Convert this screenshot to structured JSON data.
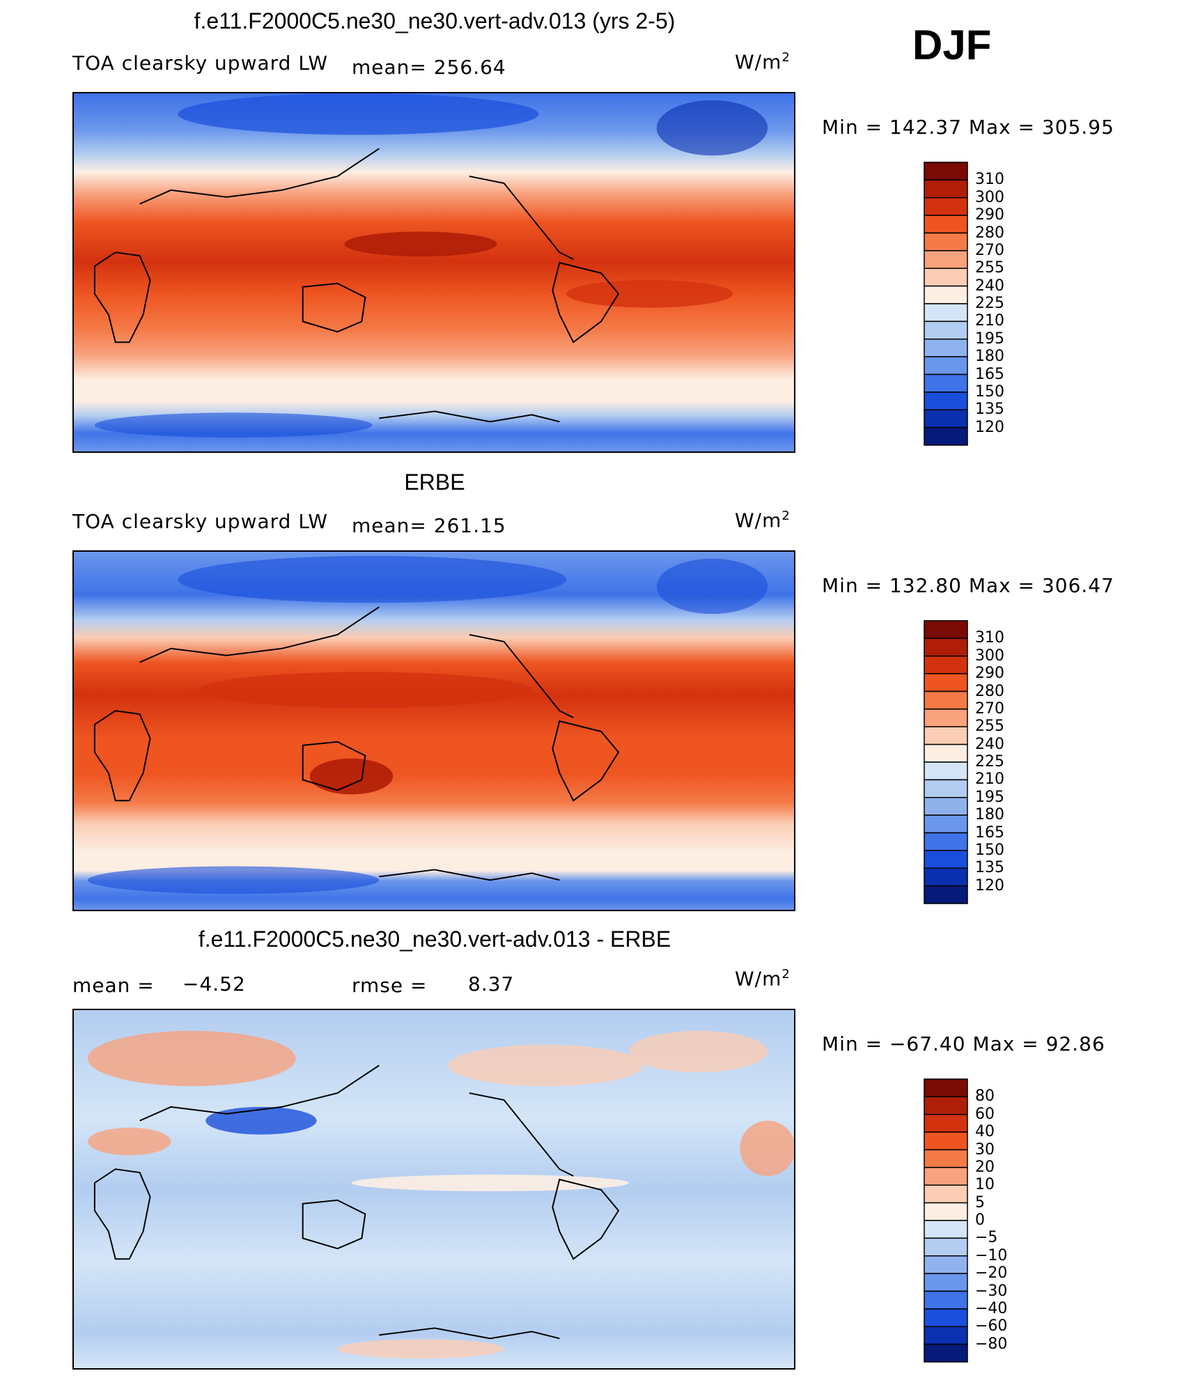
{
  "season": "DJF",
  "units_base": "W/m",
  "units_exp": "2",
  "panels": [
    {
      "title": "f.e11.F2000C5.ne30_ne30.vert-adv.013 (yrs 2-5)",
      "left_label": "TOA clearsky upward LW",
      "stat": "mean=  256.64",
      "minmax": "Min  =  142.37  Max  =  305.95",
      "colorbar_levels": [
        "310",
        "300",
        "290",
        "280",
        "270",
        "255",
        "240",
        "225",
        "210",
        "195",
        "180",
        "165",
        "150",
        "135",
        "120"
      ],
      "colorbar_colors": [
        "#7a0a05",
        "#b01e08",
        "#d3320f",
        "#ee5521",
        "#f47a47",
        "#f8a27e",
        "#fbcdb5",
        "#fdeee3",
        "#d4e5f7",
        "#b3cdf0",
        "#90b2ec",
        "#6a96ec",
        "#3f73e8",
        "#1a4fdb",
        "#0b30b0",
        "#061a7a"
      ]
    },
    {
      "title": "ERBE",
      "left_label": "TOA clearsky upward LW",
      "stat": "mean=  261.15",
      "minmax": "Min  =  132.80  Max  =  306.47",
      "colorbar_levels": [
        "310",
        "300",
        "290",
        "280",
        "270",
        "255",
        "240",
        "225",
        "210",
        "195",
        "180",
        "165",
        "150",
        "135",
        "120"
      ],
      "colorbar_colors": [
        "#7a0a05",
        "#b01e08",
        "#d3320f",
        "#ee5521",
        "#f47a47",
        "#f8a27e",
        "#fbcdb5",
        "#fdeee3",
        "#d4e5f7",
        "#b3cdf0",
        "#90b2ec",
        "#6a96ec",
        "#3f73e8",
        "#1a4fdb",
        "#0b30b0",
        "#061a7a"
      ]
    },
    {
      "title": "f.e11.F2000C5.ne30_ne30.vert-adv.013 - ERBE",
      "mean_label": "mean  =",
      "mean_value": "−4.52",
      "rmse_label": "rmse  =",
      "rmse_value": "8.37",
      "minmax": "Min  =  −67.40  Max  =    92.86",
      "colorbar_levels": [
        "80",
        "60",
        "40",
        "30",
        "20",
        "10",
        "5",
        "0",
        "−5",
        "−10",
        "−20",
        "−30",
        "−40",
        "−60",
        "−80"
      ],
      "colorbar_colors": [
        "#7a0a05",
        "#b01e08",
        "#d3320f",
        "#ee5521",
        "#f47a47",
        "#f8a27e",
        "#fbcdb5",
        "#fdeee3",
        "#d4e5f7",
        "#b3cdf0",
        "#90b2ec",
        "#6a96ec",
        "#3f73e8",
        "#1a4fdb",
        "#0b30b0",
        "#061a7a"
      ]
    }
  ],
  "chart_data": [
    {
      "type": "heatmap",
      "title": "f.e11.F2000C5.ne30_ne30.vert-adv.013 (yrs 2-5)",
      "variable": "TOA clearsky upward LW",
      "units": "W/m2",
      "season": "DJF",
      "mean": 256.64,
      "min": 142.37,
      "max": 305.95,
      "contour_levels": [
        120,
        135,
        150,
        165,
        180,
        195,
        210,
        225,
        240,
        255,
        270,
        280,
        290,
        300,
        310
      ]
    },
    {
      "type": "heatmap",
      "title": "ERBE",
      "variable": "TOA clearsky upward LW",
      "units": "W/m2",
      "season": "DJF",
      "mean": 261.15,
      "min": 132.8,
      "max": 306.47,
      "contour_levels": [
        120,
        135,
        150,
        165,
        180,
        195,
        210,
        225,
        240,
        255,
        270,
        280,
        290,
        300,
        310
      ]
    },
    {
      "type": "heatmap",
      "title": "f.e11.F2000C5.ne30_ne30.vert-adv.013 - ERBE",
      "units": "W/m2",
      "season": "DJF",
      "mean": -4.52,
      "rmse": 8.37,
      "min": -67.4,
      "max": 92.86,
      "contour_levels": [
        -80,
        -60,
        -40,
        -30,
        -20,
        -10,
        -5,
        0,
        5,
        10,
        20,
        30,
        40,
        60,
        80
      ]
    }
  ]
}
